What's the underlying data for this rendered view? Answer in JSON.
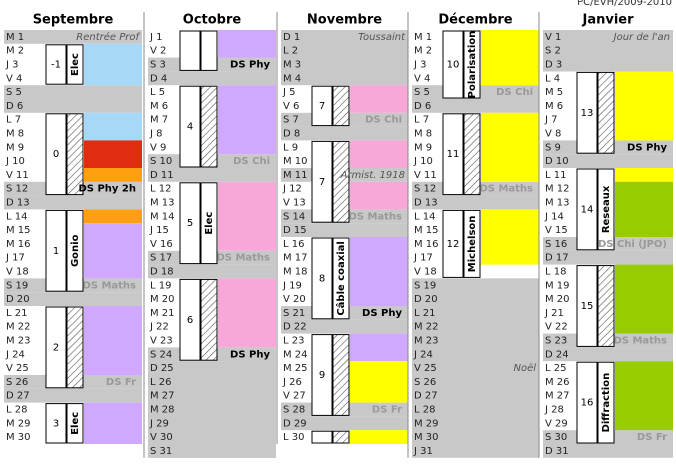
{
  "header": "PC/EVH/2009-2010",
  "months": [
    {
      "name": "Septembre",
      "days": [
        "M 1",
        "M 2",
        "J 3",
        "V 4",
        "S 5",
        "D 6",
        "L 7",
        "M 8",
        "M 9",
        "J 10",
        "V 11",
        "S 12",
        "D 13",
        "L 14",
        "M 15",
        "M 16",
        "J 17",
        "V 18",
        "S 19",
        "D 20",
        "L 21",
        "M 22",
        "M 23",
        "J 24",
        "V 25",
        "S 26",
        "D 27",
        "L 28",
        "M 29",
        "M 30"
      ],
      "holidays": [
        {
          "from": 1,
          "to": 1,
          "label": "Rentrée Prof",
          "label_day": 1
        }
      ],
      "blocks": [
        {
          "from": 2,
          "to": 4,
          "color": "#a8d8f8"
        },
        {
          "from": 7,
          "to": 8,
          "color": "#a8d8f8"
        },
        {
          "from": 9,
          "to": 10,
          "color": "#e02c10"
        },
        {
          "from": 11,
          "to": 11,
          "color": "#ffa010"
        },
        {
          "from": 14,
          "to": 14,
          "color": "#ffa010"
        },
        {
          "from": 15,
          "to": 18,
          "color": "#d0a8ff"
        },
        {
          "from": 21,
          "to": 25,
          "color": "#d0a8ff"
        },
        {
          "from": 28,
          "to": 30,
          "color": "#d0a8ff"
        }
      ],
      "weeks": [
        {
          "num": "-1",
          "from": 2,
          "to": 4,
          "label": "Elec"
        },
        {
          "num": "0",
          "from": 7,
          "to": 12,
          "hatch": true
        },
        {
          "num": "1",
          "from": 14,
          "to": 19,
          "label": "Gonio"
        },
        {
          "num": "2",
          "from": 21,
          "to": 26,
          "hatch": true
        },
        {
          "num": "3",
          "from": 28,
          "to": 30,
          "label": "Elec"
        }
      ],
      "notes": [
        {
          "day": 12,
          "text": "DS Phy 2h",
          "style": "bold"
        },
        {
          "day": 19,
          "text": "DS Maths",
          "style": "muted"
        },
        {
          "day": 26,
          "text": "DS Fr",
          "style": "muted"
        }
      ]
    },
    {
      "name": "Octobre",
      "days": [
        "J 1",
        "V 2",
        "S 3",
        "D 4",
        "L 5",
        "M 6",
        "M 7",
        "J 8",
        "V 9",
        "S 10",
        "D 11",
        "L 12",
        "M 13",
        "M 14",
        "J 15",
        "V 16",
        "S 17",
        "D 18",
        "L 19",
        "M 20",
        "M 21",
        "J 22",
        "V 23",
        "S 24",
        "D 25",
        "L 26",
        "M 27",
        "M 28",
        "J 29",
        "V 30",
        "S 31"
      ],
      "holidays": [
        {
          "from": 25,
          "to": 31
        }
      ],
      "blocks": [
        {
          "from": 1,
          "to": 2,
          "color": "#d0a8ff"
        },
        {
          "from": 5,
          "to": 9,
          "color": "#d0a8ff"
        },
        {
          "from": 12,
          "to": 16,
          "color": "#f8a8d8"
        },
        {
          "from": 19,
          "to": 23,
          "color": "#f8a8d8"
        }
      ],
      "weeks": [
        {
          "from": 1,
          "to": 3
        },
        {
          "num": "4",
          "from": 5,
          "to": 10,
          "hatch": true
        },
        {
          "num": "5",
          "from": 12,
          "to": 17,
          "label": "Elec"
        },
        {
          "num": "6",
          "from": 19,
          "to": 24,
          "hatch": true
        }
      ],
      "notes": [
        {
          "day": 3,
          "text": "DS Phy",
          "style": "bold"
        },
        {
          "day": 10,
          "text": "DS Chi",
          "style": "muted"
        },
        {
          "day": 17,
          "text": "DS Maths",
          "style": "muted"
        },
        {
          "day": 24,
          "text": "DS Phy",
          "style": "bold"
        }
      ]
    },
    {
      "name": "Novembre",
      "days": [
        "D 1",
        "L 2",
        "M 3",
        "M 4",
        "J 5",
        "V 6",
        "S 7",
        "D 8",
        "L 9",
        "M 10",
        "M 11",
        "J 12",
        "V 13",
        "S 14",
        "D 15",
        "L 16",
        "M 17",
        "M 18",
        "J 19",
        "V 20",
        "S 21",
        "D 22",
        "L 23",
        "M 24",
        "M 25",
        "J 26",
        "V 27",
        "S 28",
        "D 29",
        "L 30"
      ],
      "holidays": [
        {
          "from": 1,
          "to": 4,
          "label": "Toussaint",
          "label_day": 1
        },
        {
          "from": 11,
          "to": 11,
          "label": "Armist. 1918",
          "label_day": 11
        }
      ],
      "blocks": [
        {
          "from": 5,
          "to": 6,
          "color": "#f8a8d8"
        },
        {
          "from": 9,
          "to": 10,
          "color": "#f8a8d8"
        },
        {
          "from": 12,
          "to": 13,
          "color": "#f8a8d8"
        },
        {
          "from": 16,
          "to": 20,
          "color": "#d0a8ff"
        },
        {
          "from": 23,
          "to": 24,
          "color": "#d0a8ff"
        },
        {
          "from": 25,
          "to": 27,
          "color": "#ffff00"
        },
        {
          "from": 30,
          "to": 30,
          "color": "#ffff00"
        }
      ],
      "weeks": [
        {
          "num": "7",
          "from": 5,
          "to": 7,
          "hatch": true
        },
        {
          "num": "7",
          "from": 9,
          "to": 14,
          "hatch": true
        },
        {
          "num": "8",
          "from": 16,
          "to": 21,
          "label": "Câble coaxial"
        },
        {
          "num": "9",
          "from": 23,
          "to": 28,
          "hatch": true
        },
        {
          "from": 30,
          "to": 30,
          "hatch": true
        }
      ],
      "notes": [
        {
          "day": 7,
          "text": "DS Chi",
          "style": "muted"
        },
        {
          "day": 14,
          "text": "DS Maths",
          "style": "muted"
        },
        {
          "day": 21,
          "text": "DS Phy",
          "style": "bold"
        },
        {
          "day": 28,
          "text": "DS Fr",
          "style": "muted"
        }
      ]
    },
    {
      "name": "Décembre",
      "days": [
        "M 1",
        "M 2",
        "J 3",
        "V 4",
        "S 5",
        "D 6",
        "L 7",
        "M 8",
        "M 9",
        "J 10",
        "V 11",
        "S 12",
        "D 13",
        "L 14",
        "M 15",
        "M 16",
        "J 17",
        "V 18",
        "S 19",
        "D 20",
        "L 21",
        "M 22",
        "M 23",
        "J 24",
        "V 25",
        "S 26",
        "D 27",
        "L 28",
        "M 29",
        "M 30",
        "J 31"
      ],
      "holidays": [
        {
          "from": 19,
          "to": 31,
          "label": "Noël",
          "label_day": 25
        }
      ],
      "blocks": [
        {
          "from": 1,
          "to": 4,
          "color": "#ffff00"
        },
        {
          "from": 7,
          "to": 11,
          "color": "#ffff00"
        },
        {
          "from": 14,
          "to": 17,
          "color": "#ffff00"
        }
      ],
      "weeks": [
        {
          "num": "10",
          "from": 1,
          "to": 5,
          "label": "Polarisation"
        },
        {
          "num": "11",
          "from": 7,
          "to": 12,
          "hatch": true
        },
        {
          "num": "12",
          "from": 14,
          "to": 18,
          "label": "Michelson"
        }
      ],
      "notes": [
        {
          "day": 5,
          "text": "DS Chi",
          "style": "muted"
        },
        {
          "day": 12,
          "text": "DS Maths",
          "style": "muted"
        }
      ]
    },
    {
      "name": "Janvier",
      "days": [
        "V 1",
        "S 2",
        "D 3",
        "L 4",
        "M 5",
        "M 6",
        "J 7",
        "V 8",
        "S 9",
        "D 10",
        "L 11",
        "M 12",
        "M 13",
        "J 14",
        "V 15",
        "S 16",
        "D 17",
        "L 18",
        "M 19",
        "M 20",
        "J 21",
        "V 22",
        "S 23",
        "D 24",
        "L 25",
        "M 26",
        "M 27",
        "J 28",
        "V 29",
        "S 30",
        "D 31"
      ],
      "holidays": [
        {
          "from": 1,
          "to": 3,
          "label": "Jour de l'an",
          "label_day": 1
        }
      ],
      "blocks": [
        {
          "from": 4,
          "to": 8,
          "color": "#ffff00"
        },
        {
          "from": 11,
          "to": 11,
          "color": "#ffff00"
        },
        {
          "from": 12,
          "to": 15,
          "color": "#99cc00"
        },
        {
          "from": 18,
          "to": 22,
          "color": "#99cc00"
        },
        {
          "from": 25,
          "to": 29,
          "color": "#99cc00"
        }
      ],
      "weeks": [
        {
          "num": "13",
          "from": 4,
          "to": 9,
          "hatch": true
        },
        {
          "num": "14",
          "from": 11,
          "to": 16,
          "label": "Reseaux"
        },
        {
          "num": "15",
          "from": 18,
          "to": 23,
          "hatch": true
        },
        {
          "num": "16",
          "from": 25,
          "to": 30,
          "label": "Diffraction"
        }
      ],
      "notes": [
        {
          "day": 9,
          "text": "DS Phy",
          "style": "bold"
        },
        {
          "day": 16,
          "text": "DS Chi (JPO)",
          "style": "muted"
        },
        {
          "day": 23,
          "text": "DS Maths",
          "style": "muted"
        },
        {
          "day": 30,
          "text": "DS Fr",
          "style": "muted"
        }
      ]
    }
  ]
}
